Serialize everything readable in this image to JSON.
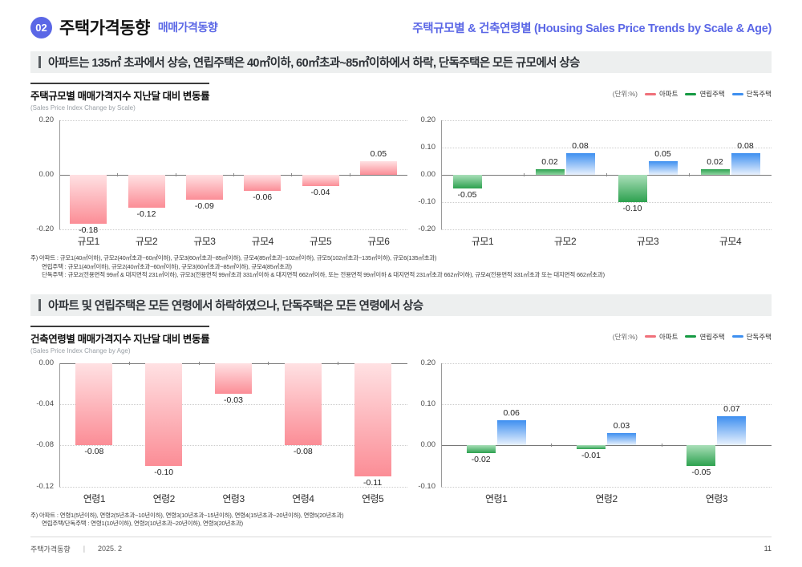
{
  "header": {
    "badge": "02",
    "title": "주택가격동향",
    "subtitle": "매매가격동향",
    "right_title": "주택규모별 & 건축연령별 (Housing Sales Price Trends by Scale & Age)"
  },
  "colors": {
    "accent_blue": "#5b67e6",
    "apartment_red": "#f0707a",
    "rowhouse_green": "#169a43",
    "detached_blue": "#3e8ff0",
    "statement_bg": "#edefef"
  },
  "sections": [
    {
      "statement": "아파트는  135㎡ 초과에서 상승, 연립주택은 40㎡이하, 60㎡초과~85㎡이하에서 하락, 단독주택은 모든 규모에서 상승",
      "chart_title": "주택규모별 매매가격지수 지난달 대비 변동률",
      "chart_subtitle": "(Sales Price Index Change by Scale)",
      "unit_label": "(단위:%)",
      "legend": [
        {
          "label": "아파트",
          "color": "#f0707a"
        },
        {
          "label": "연립주택",
          "color": "#169a43"
        },
        {
          "label": "단독주택",
          "color": "#3e8ff0"
        }
      ],
      "notes": [
        "주) 아파트 : 규모1(40㎡이하), 규모2(40㎡초과~60㎡이하), 규모3(60㎡초과~85㎡이하), 규모4(85㎡초과~102㎡이하), 규모5(102㎡초과~135㎡이하), 규모6(135㎡초과)",
        "연립주택 : 규모1(40㎡이하), 규모2(40㎡초과~60㎡이하), 규모3(60㎡초과~85㎡이하), 규모4(85㎡초과)",
        "단독주택 : 규모2(전용면적 99㎡ & 대지면적 231㎡이하), 규모3(전용면적 99㎡초과 331㎡이하 & 대지면적 662㎡이하, 또는 전용면적 99㎡이하 & 대지면적 231㎡초과 662㎡이하), 규모4(전용면적 331㎡초과 또는 대지면적 662㎡초과)"
      ]
    },
    {
      "statement": "아파트 및 연립주택은 모든 연령에서 하락하였으나, 단독주택은 모든 연령에서 상승",
      "chart_title": "건축연령별 매매가격지수 지난달 대비 변동률",
      "chart_subtitle": "(Sales Price Index Change by Age)",
      "unit_label": "(단위:%)",
      "legend": [
        {
          "label": "아파트",
          "color": "#f0707a"
        },
        {
          "label": "연립주택",
          "color": "#169a43"
        },
        {
          "label": "단독주택",
          "color": "#3e8ff0"
        }
      ],
      "notes": [
        "주) 아파트 : 연령1(5년이하), 연령2(5년초과~10년이하), 연령3(10년초과~15년이하), 연령4(15년초과~20년이하), 연령5(20년초과)",
        "연립주택/단독주택 : 연령1(10년이하), 연령2(10년초과~20년이하), 연령3(20년초과)"
      ]
    }
  ],
  "chart_data": [
    {
      "id": "scale-apartment",
      "type": "bar",
      "title": "주택규모별 매매가격지수 지난달 대비 변동률 (아파트)",
      "categories": [
        "규모1",
        "규모2",
        "규모3",
        "규모4",
        "규모5",
        "규모6"
      ],
      "series": [
        {
          "name": "아파트",
          "palette": "pink",
          "values": [
            -0.18,
            -0.12,
            -0.09,
            -0.06,
            -0.04,
            0.05
          ]
        }
      ],
      "ylim": [
        -0.2,
        0.2
      ],
      "yticks": [
        0.2,
        0.0,
        -0.2
      ],
      "unit": "%",
      "grid": "dotted",
      "legend_position": "top-right"
    },
    {
      "id": "scale-rowhouse-detached",
      "type": "bar",
      "title": "주택규모별 매매가격지수 지난달 대비 변동률 (연립주택/단독주택)",
      "categories": [
        "규모1",
        "규모2",
        "규모3",
        "규모4"
      ],
      "series": [
        {
          "name": "연립주택",
          "palette": "green",
          "values": [
            -0.05,
            0.02,
            -0.1,
            0.02
          ]
        },
        {
          "name": "단독주택",
          "palette": "blue",
          "values": [
            null,
            0.08,
            0.05,
            0.08
          ]
        }
      ],
      "ylim": [
        -0.2,
        0.2
      ],
      "yticks": [
        0.2,
        0.1,
        0.0,
        -0.1,
        -0.2
      ],
      "unit": "%",
      "grid": "dotted",
      "legend_position": "top-right"
    },
    {
      "id": "age-apartment",
      "type": "bar",
      "title": "건축연령별 매매가격지수 지난달 대비 변동률 (아파트)",
      "categories": [
        "연령1",
        "연령2",
        "연령3",
        "연령4",
        "연령5"
      ],
      "series": [
        {
          "name": "아파트",
          "palette": "pink",
          "values": [
            -0.08,
            -0.1,
            -0.03,
            -0.08,
            -0.11
          ]
        }
      ],
      "ylim": [
        -0.12,
        0.0
      ],
      "yticks": [
        0.0,
        -0.04,
        -0.08,
        -0.12
      ],
      "unit": "%",
      "grid": "dotted",
      "legend_position": "top-right"
    },
    {
      "id": "age-rowhouse-detached",
      "type": "bar",
      "title": "건축연령별 매매가격지수 지난달 대비 변동률 (연립주택/단독주택)",
      "categories": [
        "연령1",
        "연령2",
        "연령3"
      ],
      "series": [
        {
          "name": "연립주택",
          "palette": "green",
          "values": [
            -0.02,
            -0.01,
            -0.05
          ]
        },
        {
          "name": "단독주택",
          "palette": "blue",
          "values": [
            0.06,
            0.03,
            0.07
          ]
        }
      ],
      "ylim": [
        -0.1,
        0.2
      ],
      "yticks": [
        0.2,
        0.1,
        0.0,
        -0.1
      ],
      "unit": "%",
      "grid": "dotted",
      "legend_position": "top-right"
    }
  ],
  "footer": {
    "title": "주택가격동향",
    "divider": "|",
    "date": "2025. 2",
    "page": "11"
  }
}
